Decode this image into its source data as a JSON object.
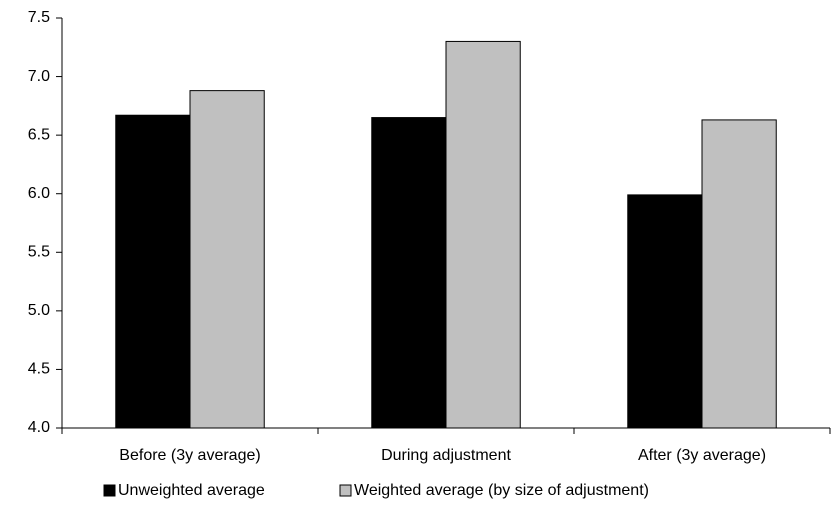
{
  "chart_data": {
    "type": "bar",
    "categories": [
      "Before (3y average)",
      "During adjustment",
      "After (3y average)"
    ],
    "series": [
      {
        "name": "Unweighted average",
        "color": "#000000",
        "values": [
          6.67,
          6.65,
          5.99
        ]
      },
      {
        "name": "Weighted average (by size of adjustment)",
        "color": "#c0c0c0",
        "values": [
          6.88,
          7.3,
          6.63
        ]
      }
    ],
    "ylim": [
      4,
      7.5
    ],
    "yticks": [
      {
        "value": 4,
        "label": "4.0"
      },
      4.5,
      {
        "value": 5,
        "label": "5.0"
      },
      5.5,
      {
        "value": 6,
        "label": "6.0"
      },
      6.5,
      {
        "value": 7,
        "label": "7.0"
      },
      7.5
    ],
    "grid": false,
    "legend": "bottom"
  }
}
